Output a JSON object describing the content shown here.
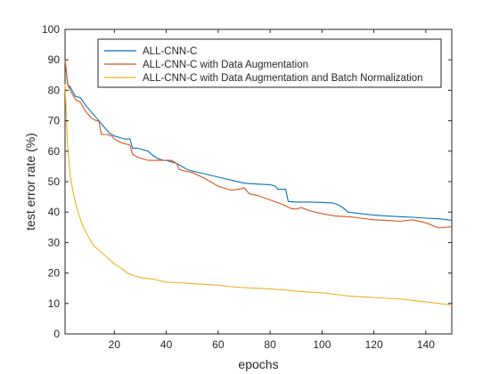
{
  "chart_data": {
    "type": "line",
    "xlabel": "epochs",
    "ylabel": "test error rate (%)",
    "xlim": [
      1,
      150
    ],
    "ylim": [
      0,
      100
    ],
    "x_ticks": [
      20,
      40,
      60,
      80,
      100,
      120,
      140
    ],
    "y_ticks": [
      0,
      10,
      20,
      30,
      40,
      50,
      60,
      70,
      80,
      90,
      100
    ],
    "grid": false,
    "legend_position": "top-right",
    "series": [
      {
        "name": "ALL-CNN-C",
        "color": "#0072BD",
        "x": [
          1,
          2,
          3,
          5,
          7,
          9,
          11,
          13,
          16,
          18,
          20,
          22,
          24,
          26,
          27,
          29,
          31,
          33,
          35,
          37,
          39,
          40,
          42,
          44,
          46,
          48,
          50,
          55,
          60,
          65,
          70,
          75,
          80,
          82,
          83,
          86,
          87,
          90,
          95,
          100,
          104,
          106,
          108,
          110,
          115,
          120,
          125,
          130,
          135,
          140,
          145,
          150
        ],
        "y": [
          90,
          82,
          81,
          78,
          77.5,
          75,
          73,
          71,
          68,
          66,
          65,
          64.5,
          64,
          64,
          61,
          61,
          60.5,
          60,
          58.5,
          57.5,
          57,
          57,
          56.5,
          56,
          55,
          54,
          53.5,
          52.5,
          51.5,
          50.5,
          49.5,
          49.2,
          49,
          48.5,
          47.5,
          47.5,
          43.5,
          43.3,
          43.3,
          43.2,
          43,
          42.5,
          41.5,
          40,
          39.5,
          39,
          38.7,
          38.5,
          38.3,
          38,
          37.8,
          37.3
        ]
      },
      {
        "name": "ALL-CNN-C with Data Augmentation",
        "color": "#D95319",
        "x": [
          1,
          2,
          3,
          5,
          7,
          9,
          11,
          13,
          14,
          15,
          17,
          19,
          20,
          22,
          24,
          26,
          27,
          29,
          31,
          33,
          35,
          38,
          40,
          42,
          44,
          45,
          47,
          50,
          55,
          60,
          65,
          68,
          69,
          70,
          72,
          75,
          80,
          85,
          88,
          90,
          92,
          95,
          100,
          105,
          110,
          115,
          120,
          125,
          130,
          135,
          140,
          145,
          150
        ],
        "y": [
          90,
          82,
          80,
          77,
          76,
          73,
          71,
          70,
          70,
          65.5,
          65.5,
          65,
          64,
          63,
          62.5,
          62,
          59,
          58,
          57.5,
          57,
          57,
          57,
          57,
          57,
          56,
          54,
          53.5,
          53,
          51,
          48.5,
          47.2,
          47.5,
          47.8,
          48,
          46,
          45.5,
          44,
          42.5,
          41.2,
          41,
          41.5,
          40.5,
          39.5,
          38.7,
          38.5,
          38,
          37.5,
          37.3,
          37,
          37.5,
          36.5,
          34.8,
          35.2
        ]
      },
      {
        "name": "ALL-CNN-C with Data Augmentation and Batch Normalization",
        "color": "#EDB120",
        "x": [
          1,
          2,
          3,
          4,
          5,
          6,
          8,
          10,
          12,
          14,
          16,
          18,
          20,
          22,
          25,
          28,
          30,
          35,
          40,
          45,
          50,
          55,
          60,
          65,
          70,
          75,
          80,
          85,
          90,
          95,
          100,
          105,
          110,
          115,
          120,
          125,
          130,
          135,
          140,
          145,
          150
        ],
        "y": [
          82,
          62,
          52,
          47,
          43,
          40,
          35,
          32,
          29,
          27.5,
          26,
          24.5,
          23,
          22,
          20,
          19,
          18.5,
          18,
          17,
          16.8,
          16.5,
          16.3,
          16,
          15.5,
          15.2,
          15,
          14.8,
          14.5,
          14,
          13.7,
          13.5,
          13,
          12.5,
          12.2,
          12,
          11.7,
          11.5,
          11,
          10.5,
          10,
          9.5
        ]
      }
    ]
  }
}
